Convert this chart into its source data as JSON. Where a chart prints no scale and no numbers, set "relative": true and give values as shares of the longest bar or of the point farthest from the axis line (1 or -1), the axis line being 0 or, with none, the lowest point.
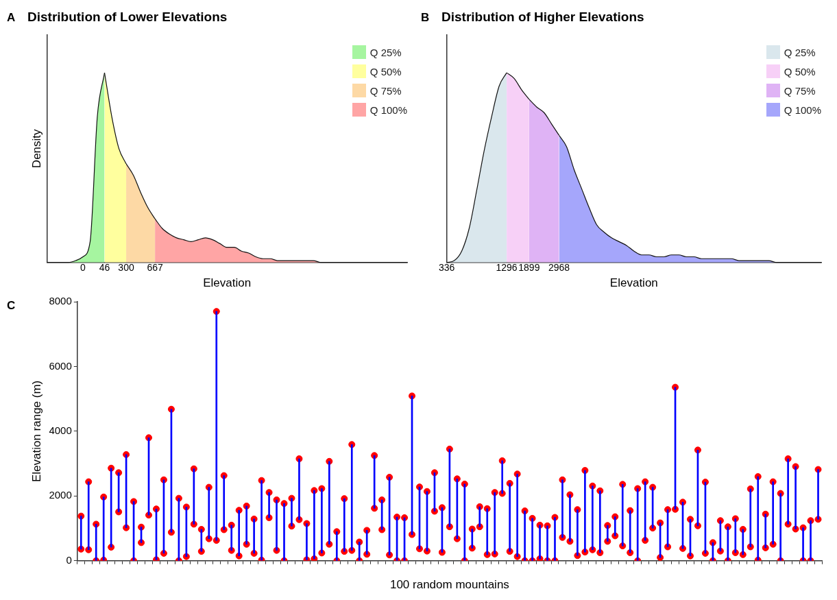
{
  "chart_data": [
    {
      "type": "area",
      "title": "Distribution of Lower Elevations",
      "xlabel": "Elevation",
      "ylabel": "Density",
      "annotations": [
        "A"
      ],
      "relative": true,
      "legend": "top right",
      "categories": [
        null,
        null,
        null,
        null,
        null,
        "0",
        null,
        null,
        "46",
        null,
        null,
        "300",
        null,
        null,
        null,
        "667",
        null,
        null,
        null,
        null,
        null,
        null,
        null,
        null,
        null,
        null,
        null,
        null,
        null,
        null,
        null,
        null,
        null,
        null,
        null,
        null,
        null,
        null,
        null,
        null,
        null,
        null,
        null,
        null,
        null,
        null,
        null,
        null,
        null,
        null,
        null
      ],
      "series": [
        {
          "name": "Q 25%",
          "color": "#a6f5a0",
          "values": [
            0,
            0,
            0,
            0,
            0.01,
            0.03,
            0.11,
            0.77,
            1,
            null,
            null,
            null,
            null,
            null,
            null,
            null,
            null,
            null,
            null,
            null,
            null,
            null,
            null,
            null,
            null,
            null,
            null,
            null,
            null,
            null,
            null,
            null,
            null,
            null,
            null,
            null,
            null,
            null,
            null,
            null,
            null,
            null,
            null,
            null,
            null,
            null,
            null,
            null,
            null,
            null,
            null
          ]
        },
        {
          "name": "Q 50%",
          "color": "#ffff9e",
          "values": [
            null,
            null,
            null,
            null,
            null,
            null,
            null,
            null,
            1,
            0.77,
            0.6,
            0.52,
            null,
            null,
            null,
            null,
            null,
            null,
            null,
            null,
            null,
            null,
            null,
            null,
            null,
            null,
            null,
            null,
            null,
            null,
            null,
            null,
            null,
            null,
            null,
            null,
            null,
            null,
            null,
            null,
            null,
            null,
            null,
            null,
            null,
            null,
            null,
            null,
            null,
            null,
            null
          ]
        },
        {
          "name": "Q 75%",
          "color": "#fdd9a5",
          "values": [
            null,
            null,
            null,
            null,
            null,
            null,
            null,
            null,
            null,
            null,
            null,
            0.52,
            0.46,
            0.37,
            0.29,
            0.23,
            null,
            null,
            null,
            null,
            null,
            null,
            null,
            null,
            null,
            null,
            null,
            null,
            null,
            null,
            null,
            null,
            null,
            null,
            null,
            null,
            null,
            null,
            null,
            null,
            null,
            null,
            null,
            null,
            null,
            null,
            null,
            null,
            null,
            null,
            null
          ]
        },
        {
          "name": "Q 100%",
          "color": "#ffa5a5",
          "values": [
            null,
            null,
            null,
            null,
            null,
            null,
            null,
            null,
            null,
            null,
            null,
            null,
            null,
            null,
            null,
            0.23,
            0.18,
            0.15,
            0.13,
            0.12,
            0.11,
            0.12,
            0.13,
            0.12,
            0.1,
            0.08,
            0.08,
            0.06,
            0.05,
            0.03,
            0.02,
            0.02,
            0.01,
            0.01,
            0.01,
            0.01,
            0.01,
            0.01,
            0,
            0,
            0,
            0,
            0,
            0,
            0,
            0,
            0,
            0,
            0,
            0,
            0
          ]
        }
      ]
    },
    {
      "type": "area",
      "title": "Distribution of Higher Elevations",
      "xlabel": "Elevation",
      "annotations": [
        "B"
      ],
      "relative": true,
      "legend": "top right",
      "categories": [
        "336",
        null,
        null,
        null,
        null,
        null,
        null,
        null,
        "1296",
        null,
        null,
        "1899",
        null,
        null,
        null,
        "2968",
        null,
        null,
        null,
        null,
        null,
        null,
        null,
        null,
        null,
        null,
        null,
        null,
        null,
        null,
        null,
        null,
        null,
        null,
        null,
        null,
        null,
        null,
        null,
        null,
        null,
        null,
        null,
        null,
        null,
        null,
        null,
        null,
        null,
        null,
        null
      ],
      "series": [
        {
          "name": "Q 25%",
          "color": "#dae7ed",
          "values": [
            0,
            0.01,
            0.06,
            0.18,
            0.38,
            0.59,
            0.77,
            0.93,
            1,
            null,
            null,
            null,
            null,
            null,
            null,
            null,
            null,
            null,
            null,
            null,
            null,
            null,
            null,
            null,
            null,
            null,
            null,
            null,
            null,
            null,
            null,
            null,
            null,
            null,
            null,
            null,
            null,
            null,
            null,
            null,
            null,
            null,
            null,
            null,
            null,
            null,
            null,
            null,
            null,
            null,
            null
          ]
        },
        {
          "name": "Q 50%",
          "color": "#f7d0f7",
          "values": [
            null,
            null,
            null,
            null,
            null,
            null,
            null,
            null,
            1,
            0.97,
            0.91,
            0.86,
            null,
            null,
            null,
            null,
            null,
            null,
            null,
            null,
            null,
            null,
            null,
            null,
            null,
            null,
            null,
            null,
            null,
            null,
            null,
            null,
            null,
            null,
            null,
            null,
            null,
            null,
            null,
            null,
            null,
            null,
            null,
            null,
            null,
            null,
            null,
            null,
            null,
            null,
            null
          ]
        },
        {
          "name": "Q 75%",
          "color": "#dfb3f5",
          "values": [
            null,
            null,
            null,
            null,
            null,
            null,
            null,
            null,
            null,
            null,
            null,
            0.86,
            0.82,
            0.79,
            0.73,
            0.67,
            null,
            null,
            null,
            null,
            null,
            null,
            null,
            null,
            null,
            null,
            null,
            null,
            null,
            null,
            null,
            null,
            null,
            null,
            null,
            null,
            null,
            null,
            null,
            null,
            null,
            null,
            null,
            null,
            null,
            null,
            null,
            null,
            null,
            null,
            null
          ]
        },
        {
          "name": "Q 100%",
          "color": "#a5a6fb",
          "values": [
            null,
            null,
            null,
            null,
            null,
            null,
            null,
            null,
            null,
            null,
            null,
            null,
            null,
            null,
            null,
            0.67,
            0.61,
            0.49,
            0.39,
            0.29,
            0.2,
            0.16,
            0.13,
            0.11,
            0.09,
            0.06,
            0.04,
            0.04,
            0.03,
            0.03,
            0.04,
            0.04,
            0.03,
            0.03,
            0.02,
            0.02,
            0.02,
            0.02,
            0.02,
            0.01,
            0.01,
            0.01,
            0.01,
            0.01,
            0,
            0,
            0,
            0,
            0,
            0,
            0
          ]
        }
      ]
    },
    {
      "type": "bar",
      "xlabel": "100 random mountains",
      "ylabel": "Elevation range (m)",
      "annotations": [
        "C"
      ],
      "ylim": [
        0,
        8000
      ],
      "yticks": [
        0,
        2000,
        4000,
        6000,
        8000
      ],
      "marker": "circle",
      "categories": [
        null,
        null,
        null,
        null,
        null,
        null,
        null,
        null,
        null,
        null,
        null,
        null,
        null,
        null,
        null,
        null,
        null,
        null,
        null,
        null,
        null,
        null,
        null,
        null,
        null,
        null,
        null,
        null,
        null,
        null,
        null,
        null,
        null,
        null,
        null,
        null,
        null,
        null,
        null,
        null,
        null,
        null,
        null,
        null,
        null,
        null,
        null,
        null,
        null,
        null,
        null,
        null,
        null,
        null,
        null,
        null,
        null,
        null,
        null,
        null,
        null,
        null,
        null,
        null,
        null,
        null,
        null,
        null,
        null,
        null,
        null,
        null,
        null,
        null,
        null,
        null,
        null,
        null,
        null,
        null,
        null,
        null,
        null,
        null,
        null,
        null,
        null,
        null,
        null,
        null,
        null,
        null,
        null,
        null,
        null,
        null,
        null,
        null,
        null
      ],
      "series": [
        {
          "type": "bar",
          "color": "#0000ff",
          "base": [
            360,
            340,
            0,
            20,
            420,
            1510,
            1020,
            0,
            560,
            1410,
            30,
            230,
            880,
            0,
            130,
            1130,
            290,
            680,
            630,
            960,
            320,
            150,
            510,
            230,
            20,
            1330,
            320,
            0,
            1070,
            1270,
            30,
            60,
            240,
            510,
            0,
            290,
            320,
            0,
            200,
            1620,
            960,
            180,
            0,
            0,
            810,
            370,
            300,
            1530,
            260,
            1050,
            680,
            0,
            390,
            1050,
            190,
            210,
            2080,
            290,
            130,
            0,
            0,
            60,
            0,
            0,
            720,
            600,
            160,
            270,
            340,
            250,
            600,
            770,
            460,
            250,
            0,
            630,
            1010,
            100,
            430,
            1590,
            380,
            150,
            1080,
            230,
            0,
            300,
            0,
            250,
            190,
            430,
            20,
            400,
            510,
            0,
            1130,
            980,
            0,
            0,
            1280
          ],
          "values": [
            1020,
            2100,
            1130,
            1950,
            2440,
            1210,
            2260,
            1830,
            480,
            2390,
            1570,
            2270,
            3800,
            1930,
            1530,
            1710,
            680,
            1590,
            7070,
            1670,
            780,
            1410,
            1180,
            1060,
            2460,
            780,
            1560,
            1770,
            860,
            1880,
            1120,
            2110,
            1990,
            2560,
            900,
            1630,
            3270,
            580,
            740,
            1630,
            920,
            2400,
            1350,
            1330,
            4280,
            1910,
            1840,
            1190,
            1380,
            2400,
            1850,
            2370,
            590,
            620,
            1420,
            1900,
            1010,
            2100,
            2550,
            1540,
            1310,
            1040,
            1080,
            1340,
            1780,
            1440,
            1420,
            2520,
            1970,
            1910,
            490,
            590,
            1900,
            1300,
            2230,
            1810,
            1260,
            1070,
            1150,
            3770,
            1430,
            1130,
            2340,
            2200,
            560,
            940,
            1050,
            1050,
            780,
            1790,
            2580,
            1040,
            1930,
            2080,
            2020,
            1930,
            1020,
            1240,
            1540
          ]
        },
        {
          "type": "scatter",
          "color": "#ff0000",
          "values": [
            360,
            340,
            0,
            20,
            420,
            1510,
            1020,
            0,
            560,
            1410,
            30,
            230,
            880,
            0,
            130,
            1130,
            290,
            680,
            630,
            960,
            320,
            150,
            510,
            230,
            20,
            1330,
            320,
            0,
            1070,
            1270,
            30,
            60,
            240,
            510,
            0,
            290,
            320,
            0,
            200,
            1620,
            960,
            180,
            0,
            0,
            810,
            370,
            300,
            1530,
            260,
            1050,
            680,
            0,
            390,
            1050,
            190,
            210,
            2080,
            290,
            130,
            0,
            0,
            60,
            0,
            0,
            720,
            600,
            160,
            270,
            340,
            250,
            600,
            770,
            460,
            250,
            0,
            630,
            1010,
            100,
            430,
            1590,
            380,
            150,
            1080,
            230,
            0,
            300,
            0,
            250,
            190,
            430,
            20,
            400,
            510,
            0,
            1130,
            980,
            0,
            0,
            1280
          ]
        },
        {
          "type": "scatter",
          "color": "#ff0000",
          "values": [
            1380,
            2440,
            1130,
            1970,
            2860,
            2720,
            3280,
            1830,
            1040,
            3800,
            1600,
            2500,
            4680,
            1930,
            1660,
            2840,
            970,
            2270,
            7700,
            2630,
            1100,
            1560,
            1690,
            1290,
            2480,
            2110,
            1880,
            1770,
            1930,
            3150,
            1150,
            2170,
            2230,
            3070,
            900,
            1920,
            3590,
            580,
            940,
            3250,
            1880,
            2580,
            1350,
            1330,
            5090,
            2280,
            2140,
            2720,
            1640,
            3450,
            2530,
            2370,
            980,
            1670,
            1610,
            2110,
            3090,
            2390,
            2680,
            1540,
            1310,
            1100,
            1080,
            1340,
            2500,
            2040,
            1580,
            2790,
            2310,
            2160,
            1090,
            1360,
            2360,
            1550,
            2230,
            2440,
            2270,
            1170,
            1580,
            5360,
            1810,
            1280,
            3420,
            2430,
            560,
            1240,
            1050,
            1300,
            970,
            2220,
            2600,
            1440,
            2440,
            2080,
            3150,
            2910,
            1020,
            1240,
            2820
          ]
        }
      ]
    }
  ]
}
